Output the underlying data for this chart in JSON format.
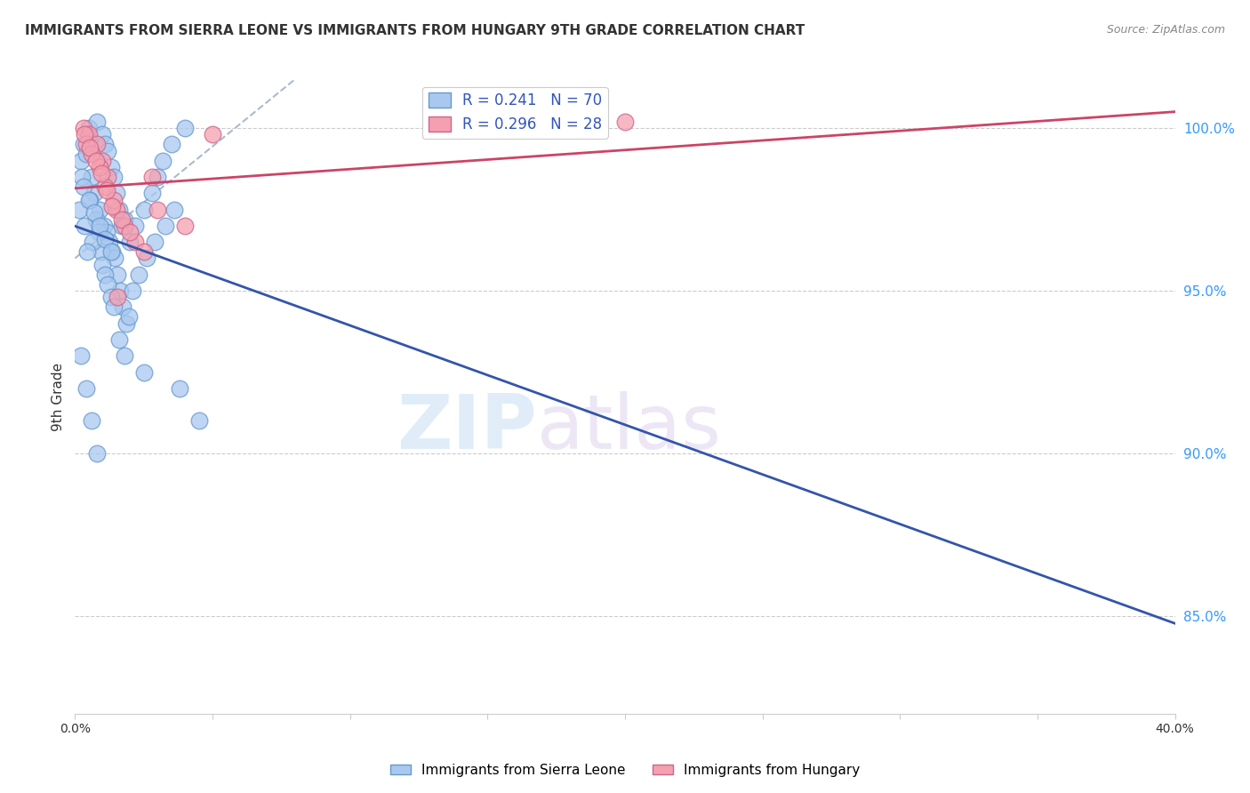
{
  "title": "IMMIGRANTS FROM SIERRA LEONE VS IMMIGRANTS FROM HUNGARY 9TH GRADE CORRELATION CHART",
  "source": "Source: ZipAtlas.com",
  "ylabel": "9th Grade",
  "yticks": [
    85.0,
    90.0,
    95.0,
    100.0
  ],
  "ytick_labels": [
    "85.0%",
    "90.0%",
    "95.0%",
    "100.0%"
  ],
  "xlim": [
    0.0,
    40.0
  ],
  "ylim": [
    82.0,
    101.5
  ],
  "sierra_leone_color": "#a8c8f0",
  "hungary_color": "#f5a0b0",
  "sierra_leone_edge": "#6699cc",
  "hungary_edge": "#cc6688",
  "trend_sierra_color": "#3355aa",
  "trend_hungary_color": "#cc4466",
  "trend_diagonal_color": "#aabbcc",
  "legend_label_sierra": "R = 0.241   N = 70",
  "legend_label_hungary": "R = 0.296   N = 28",
  "watermark_zip": "ZIP",
  "watermark_atlas": "atlas",
  "sierra_leone_x": [
    0.3,
    0.5,
    0.8,
    1.0,
    1.1,
    1.2,
    1.3,
    1.4,
    1.5,
    1.6,
    1.7,
    1.8,
    2.0,
    2.2,
    2.5,
    2.8,
    3.0,
    3.2,
    3.5,
    4.0,
    0.2,
    0.4,
    0.6,
    0.7,
    0.9,
    1.05,
    1.15,
    1.25,
    1.35,
    1.45,
    1.55,
    1.65,
    1.75,
    1.85,
    1.95,
    2.1,
    2.3,
    2.6,
    2.9,
    3.3,
    3.6,
    0.25,
    0.55,
    0.75,
    0.85,
    0.95,
    1.0,
    1.1,
    1.2,
    1.3,
    1.4,
    0.15,
    0.35,
    0.65,
    0.45,
    1.6,
    1.8,
    2.5,
    3.8,
    4.5,
    0.3,
    0.5,
    0.7,
    0.9,
    1.1,
    1.3,
    0.2,
    0.4,
    0.6,
    0.8
  ],
  "sierra_leone_y": [
    99.5,
    100.0,
    100.2,
    99.8,
    99.5,
    99.3,
    98.8,
    98.5,
    98.0,
    97.5,
    97.0,
    97.2,
    96.5,
    97.0,
    97.5,
    98.0,
    98.5,
    99.0,
    99.5,
    100.0,
    99.0,
    99.2,
    98.5,
    98.0,
    97.5,
    97.0,
    96.8,
    96.5,
    96.2,
    96.0,
    95.5,
    95.0,
    94.5,
    94.0,
    94.2,
    95.0,
    95.5,
    96.0,
    96.5,
    97.0,
    97.5,
    98.5,
    97.8,
    97.2,
    96.8,
    96.2,
    95.8,
    95.5,
    95.2,
    94.8,
    94.5,
    97.5,
    97.0,
    96.5,
    96.2,
    93.5,
    93.0,
    92.5,
    92.0,
    91.0,
    98.2,
    97.8,
    97.4,
    97.0,
    96.6,
    96.2,
    93.0,
    92.0,
    91.0,
    90.0
  ],
  "hungary_x": [
    0.3,
    0.5,
    0.8,
    1.0,
    1.2,
    1.5,
    1.8,
    2.2,
    3.0,
    5.0,
    0.4,
    0.6,
    0.9,
    1.1,
    1.4,
    1.7,
    2.0,
    2.5,
    4.0,
    0.35,
    0.55,
    0.75,
    0.95,
    1.15,
    1.35,
    1.55,
    2.8,
    20.0
  ],
  "hungary_y": [
    100.0,
    99.8,
    99.5,
    99.0,
    98.5,
    97.5,
    97.0,
    96.5,
    97.5,
    99.8,
    99.5,
    99.2,
    98.8,
    98.2,
    97.8,
    97.2,
    96.8,
    96.2,
    97.0,
    99.8,
    99.4,
    99.0,
    98.6,
    98.1,
    97.6,
    94.8,
    98.5,
    100.2
  ],
  "legend_bottom_sierra": "Immigrants from Sierra Leone",
  "legend_bottom_hungary": "Immigrants from Hungary"
}
